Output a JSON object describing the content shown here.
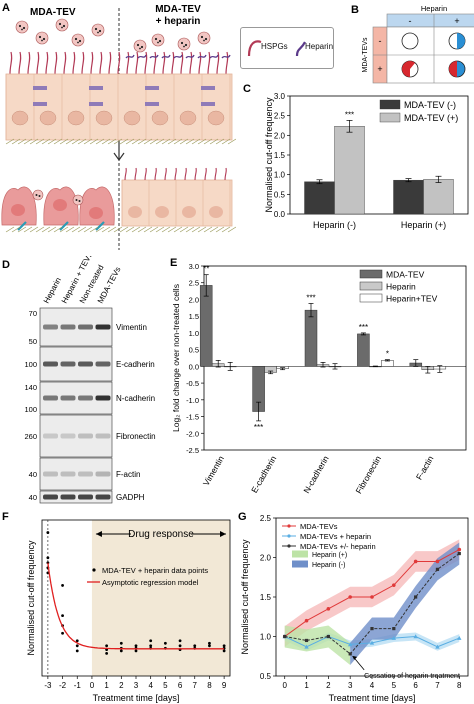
{
  "panel_letters": {
    "a": "A",
    "b": "B",
    "c": "C",
    "d": "D",
    "e": "E",
    "f": "F",
    "g": "G"
  },
  "panel_a": {
    "left_title": "MDA-TEV",
    "right_title_1": "MDA-TEV",
    "right_title_2": "+ heparin",
    "legend_hspgs": "HSPGs",
    "legend_heparin": "Heparin",
    "colors": {
      "cell": "#f6d9c6",
      "cell_edge": "#e4b49a",
      "nucleus": "#e9b7a2",
      "damaged_cell": "#e99b9b",
      "hspg": "#b23a56",
      "heparin": "#5b3a8a",
      "tev_circle": "#f2c6c3"
    }
  },
  "panel_b": {
    "heparin_header": "Heparin",
    "col_minus": "-",
    "col_plus": "+",
    "row_label": "MDA-TEVs",
    "row_minus": "-",
    "row_plus": "+",
    "colors": {
      "header_bg": "#bcd7ef",
      "row_bg": "#f4b6a6",
      "red": "#d7282f",
      "blue": "#2a8fd4"
    }
  },
  "chart_c": {
    "chart_data": {
      "type": "bar",
      "categories": [
        "Heparin (-)",
        "Heparin (+)"
      ],
      "series": [
        {
          "name": "MDA-TEV (-)",
          "values": [
            0.82,
            0.86
          ],
          "errors": [
            0.05,
            0.04
          ],
          "color": "#3a3a3a"
        },
        {
          "name": "MDA-TEV (+)",
          "values": [
            2.23,
            0.88
          ],
          "errors": [
            0.15,
            0.08
          ],
          "color": "#c2c2c2"
        }
      ],
      "ylabel": "Normalised cut-off frequency",
      "ylim": [
        0,
        3
      ],
      "yticks": [
        "0.0",
        "0.5",
        "1.0",
        "1.5",
        "2.0",
        "2.5",
        "3.0"
      ],
      "annotation": "***",
      "legend_placement": "top-right"
    }
  },
  "panel_d": {
    "lane_labels": [
      "Heparin",
      "Heparin + TEVs",
      "Non-treated",
      "MDA-TEVs"
    ],
    "rows": [
      {
        "label": "Vimentin",
        "markers": [
          "70",
          "50"
        ]
      },
      {
        "label": "E-cadherin",
        "markers": [
          "100"
        ]
      },
      {
        "label": "N-cadherin",
        "markers": [
          "140",
          "100"
        ]
      },
      {
        "label": "Fibronectin",
        "markers": [
          "260"
        ]
      },
      {
        "label": "F-actin",
        "markers": [
          "40"
        ]
      },
      {
        "label": "GADPH",
        "markers": [
          "40"
        ]
      }
    ]
  },
  "chart_e": {
    "chart_data": {
      "type": "bar",
      "categories": [
        "Vimentin",
        "E-cadherin",
        "N-cadherin",
        "Fibronectin",
        "F-actin"
      ],
      "series": [
        {
          "name": "MDA-TEV",
          "values": [
            2.42,
            -1.35,
            1.68,
            0.97,
            0.1
          ],
          "errors": [
            0.32,
            0.28,
            0.2,
            0.03,
            0.1
          ],
          "color": "#6b6b6b"
        },
        {
          "name": "Heparin",
          "values": [
            0.08,
            -0.18,
            0.05,
            0.0,
            -0.1
          ],
          "errors": [
            0.1,
            0.04,
            0.07,
            0.01,
            0.1
          ],
          "color": "#c9c9c9"
        },
        {
          "name": "Heparin+TEV",
          "values": [
            0.0,
            -0.07,
            0.0,
            0.18,
            -0.08
          ],
          "errors": [
            0.12,
            0.03,
            0.08,
            0.02,
            0.1
          ],
          "color": "#ffffff"
        }
      ],
      "significance": [
        {
          "category": "Vimentin",
          "text": "**",
          "side": "top"
        },
        {
          "category": "E-cadherin",
          "text": "***",
          "side": "bottom"
        },
        {
          "category": "N-cadherin",
          "text": "***",
          "side": "top"
        },
        {
          "category": "Fibronectin",
          "text": "***",
          "side": "top"
        },
        {
          "category": "Fibronectin",
          "series": "Heparin+TEV",
          "text": "*",
          "side": "top"
        }
      ],
      "ylabel": "Log₂ fold change over non-treated cells",
      "ylim": [
        -2.5,
        3.0
      ],
      "yticks": [
        "-2.5",
        "-2.0",
        "-1.5",
        "-1.0",
        "-0.5",
        "0.0",
        "0.5",
        "1.0",
        "1.5",
        "2.0",
        "2.5",
        "3.0"
      ],
      "legend_placement": "top-right"
    }
  },
  "chart_f": {
    "chart_data": {
      "type": "scatter",
      "points": [
        [
          -3,
          4.3
        ],
        [
          -3,
          4.1
        ],
        [
          -3,
          3.9
        ],
        [
          -3,
          4.5
        ],
        [
          -3,
          5.5
        ],
        [
          -2,
          3.4
        ],
        [
          -2,
          2.2
        ],
        [
          -2,
          1.8
        ],
        [
          -2,
          1.5
        ],
        [
          -1,
          1.2
        ],
        [
          -1,
          1.0
        ],
        [
          -1,
          0.8
        ],
        [
          1,
          0.85
        ],
        [
          1,
          1.0
        ],
        [
          1,
          0.7
        ],
        [
          2,
          1.1
        ],
        [
          2,
          0.9
        ],
        [
          2,
          0.8
        ],
        [
          3,
          1.0
        ],
        [
          3,
          0.8
        ],
        [
          3,
          0.9
        ],
        [
          4,
          1.2
        ],
        [
          4,
          0.9
        ],
        [
          4,
          1.0
        ],
        [
          5,
          1.1
        ],
        [
          5,
          0.9
        ],
        [
          6,
          1.0
        ],
        [
          6,
          0.85
        ],
        [
          6,
          1.2
        ],
        [
          7,
          1.0
        ],
        [
          7,
          0.9
        ],
        [
          8,
          1.1
        ],
        [
          8,
          1.0
        ],
        [
          9,
          0.8
        ],
        [
          9,
          0.9
        ],
        [
          9,
          1.0
        ]
      ],
      "model": {
        "type": "asymptotic",
        "asymptote": 0.88,
        "start": [
          -3,
          4.3
        ],
        "rate": 1.35
      },
      "series": [
        {
          "name": "MDA-TEV + heparin data points",
          "color": "#000000"
        },
        {
          "name": "Asymptotic regression model",
          "color": "#e02020"
        }
      ],
      "xlabel": "Treatment time [days]",
      "ylabel": "Normalised cut-off frequency",
      "xlim": [
        -3.4,
        9.4
      ],
      "ylim": [
        -0.2,
        6
      ],
      "xticks": [
        "-3",
        "-2",
        "-1",
        "0",
        "1",
        "2",
        "3",
        "4",
        "5",
        "6",
        "7",
        "8",
        "9"
      ],
      "shaded_region": {
        "from": 0,
        "to": 9.4,
        "label": "Drug response",
        "color": "#f2e8d6"
      },
      "dotted_line_x": -3
    }
  },
  "chart_g": {
    "chart_data": {
      "type": "line",
      "x": [
        0,
        1,
        2,
        3,
        4,
        5,
        6,
        7,
        8
      ],
      "series": [
        {
          "name": "MDA-TEVs",
          "values": [
            1.0,
            1.2,
            1.35,
            1.5,
            1.5,
            1.65,
            1.95,
            1.95,
            2.1
          ],
          "band": 0.13,
          "color": "#e03a3a",
          "marker": "circle"
        },
        {
          "name": "MDA-TEVs + heparin",
          "values": [
            1.0,
            0.87,
            1.0,
            0.9,
            0.92,
            0.98,
            1.0,
            0.87,
            0.98
          ],
          "band": 0.05,
          "color": "#5aaee3",
          "marker": "triangle"
        },
        {
          "name": "MDA-TEVs +/- heparin",
          "values": [
            1.0,
            0.95,
            1.0,
            0.78,
            1.1,
            1.1,
            1.5,
            1.85,
            2.05
          ],
          "band": 0.14,
          "color": "#333333",
          "marker": "square"
        }
      ],
      "bands": [
        {
          "name": "Heparin (+)",
          "color": "#bde3a6"
        },
        {
          "name": "Heparin (-)",
          "color": "#6f8fc9"
        }
      ],
      "annotation": "Cessation of heparin treatment",
      "xlabel": "Treatment time [days]",
      "ylabel": "Normalised cut-off frequency",
      "xlim": [
        -0.4,
        8.4
      ],
      "ylim": [
        0.5,
        2.5
      ],
      "yticks": [
        "0.5",
        "1.0",
        "1.5",
        "2.0",
        "2.5"
      ],
      "legend_placement": "top-left"
    }
  }
}
